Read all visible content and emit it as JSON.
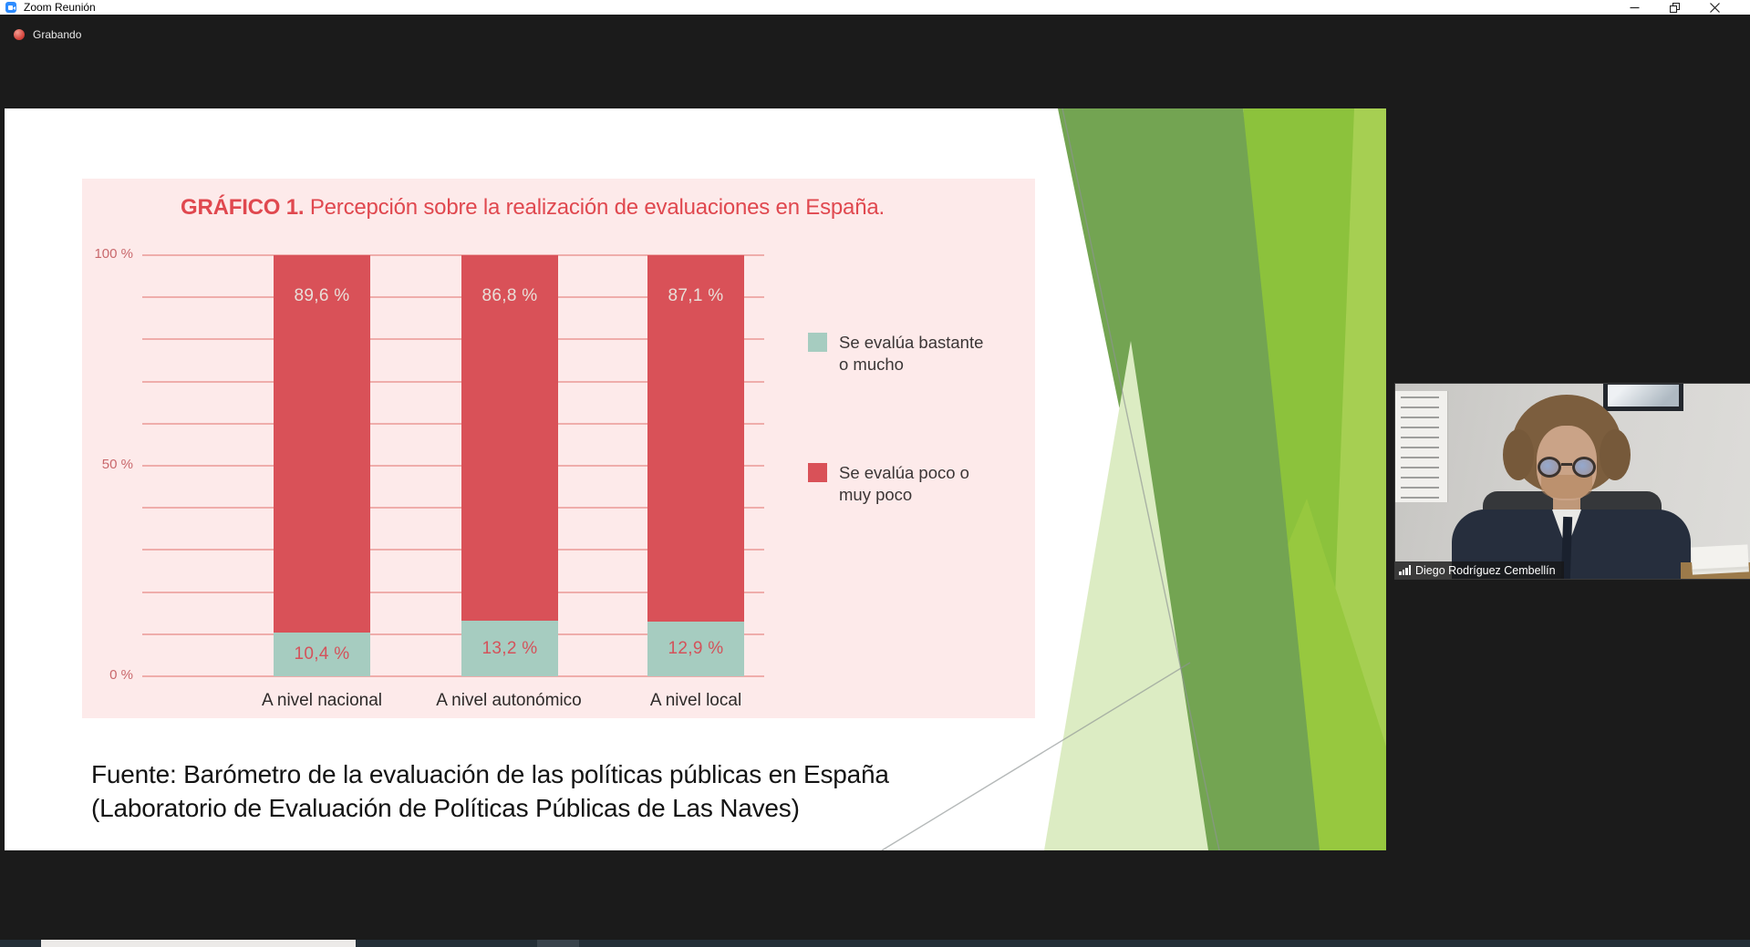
{
  "window": {
    "title": "Zoom Reunión",
    "controls": {
      "minimize": "minimize",
      "restore": "restore",
      "close": "close"
    }
  },
  "status": {
    "recording_label": "Grabando"
  },
  "chart_data": {
    "type": "bar",
    "stacked": true,
    "title": "GRÁFICO 1. Percepción sobre la realización de evaluaciones en España.",
    "title_bold_prefix": "GRÁFICO 1.",
    "title_rest": " Percepción sobre la realización de evaluaciones en España.",
    "categories": [
      "A nivel nacional",
      "A nivel autonómico",
      "A nivel local"
    ],
    "series": [
      {
        "name": "Se evalúa bastante o mucho",
        "color": "#a6ccc0",
        "label_color": "#d4525a",
        "values": [
          10.4,
          13.2,
          12.9
        ],
        "value_labels": [
          "10,4 %",
          "13,2 %",
          "12,9 %"
        ]
      },
      {
        "name": "Se evalúa poco o muy poco",
        "color": "#d95158",
        "label_color": "#e9dfd9",
        "values": [
          89.6,
          86.8,
          87.1
        ],
        "value_labels": [
          "89,6 %",
          "86,8 %",
          "87,1 %"
        ]
      }
    ],
    "y_axis": {
      "tick_labels": [
        "100 %",
        "50 %",
        "0 %"
      ],
      "min": 0,
      "max": 100,
      "gridline_interval": 10
    },
    "ylim": [
      0,
      100
    ],
    "grid": true,
    "legend_position": "right",
    "panel_bg": "#fdeaea",
    "title_color": "#e0484f",
    "gridline_color": "#efadab"
  },
  "slide": {
    "source_line1": "Fuente: Barómetro de la evaluación de las políticas públicas en España",
    "source_line2": "(Laboratorio de Evaluación de Políticas Públicas de Las Naves)"
  },
  "participant": {
    "name": "Diego Rodríguez Cembellín"
  },
  "icons": {
    "app": "zoom-camera-icon",
    "recording": "recording-dot-icon",
    "connection": "signal-bars-icon",
    "minimize": "minimize-icon",
    "restore": "restore-window-icon",
    "close": "close-icon"
  },
  "colors": {
    "zoom_blue": "#2d8cff",
    "recording_red": "#d4443c",
    "background_dark": "#1b1b1b",
    "slide_accent_greens": [
      "#73a452",
      "#8cc23c",
      "#a6cf52",
      "#dcecc3"
    ]
  }
}
